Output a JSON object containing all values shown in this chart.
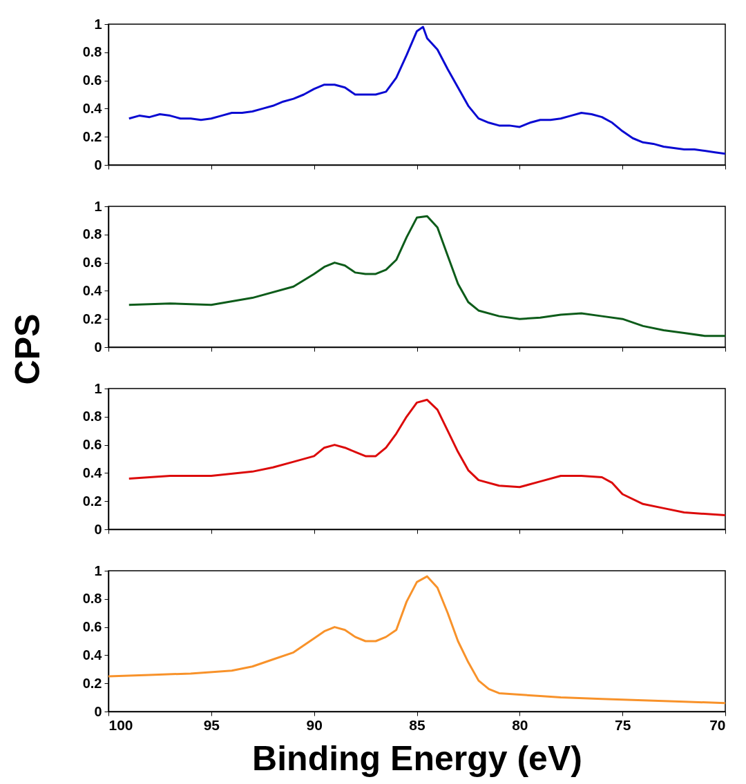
{
  "chart_data": [
    {
      "type": "line",
      "xlim": [
        100,
        70
      ],
      "ylim": [
        0,
        1
      ],
      "xticks": [
        100,
        95,
        90,
        85,
        80,
        75,
        70
      ],
      "yticks": [
        0,
        0.2,
        0.4,
        0.6,
        0.8,
        1
      ],
      "tick_labels": "y",
      "grid": false,
      "series": [
        {
          "color": "#0a0ad2",
          "x": [
            99,
            98.5,
            98,
            97.5,
            97,
            96.5,
            96,
            95.5,
            95,
            94.5,
            94,
            93.5,
            93,
            92.5,
            92,
            91.5,
            91,
            90.5,
            90,
            89.5,
            89,
            88.5,
            88,
            87.5,
            87,
            86.5,
            86,
            85.5,
            85,
            84.7,
            84.5,
            84,
            83.5,
            83,
            82.5,
            82,
            81.5,
            81,
            80.5,
            80,
            79.5,
            79,
            78.5,
            78,
            77.5,
            77,
            76.5,
            76,
            75.5,
            75,
            74.5,
            74,
            73.5,
            73,
            72.5,
            72,
            71.5,
            71,
            70.5,
            70
          ],
          "values": [
            0.33,
            0.35,
            0.34,
            0.36,
            0.35,
            0.33,
            0.33,
            0.32,
            0.33,
            0.35,
            0.37,
            0.37,
            0.38,
            0.4,
            0.42,
            0.45,
            0.47,
            0.5,
            0.54,
            0.57,
            0.57,
            0.55,
            0.5,
            0.5,
            0.5,
            0.52,
            0.62,
            0.78,
            0.95,
            0.98,
            0.9,
            0.82,
            0.68,
            0.55,
            0.42,
            0.33,
            0.3,
            0.28,
            0.28,
            0.27,
            0.3,
            0.32,
            0.32,
            0.33,
            0.35,
            0.37,
            0.36,
            0.34,
            0.3,
            0.24,
            0.19,
            0.16,
            0.15,
            0.13,
            0.12,
            0.11,
            0.11,
            0.1,
            0.09,
            0.08
          ]
        }
      ]
    },
    {
      "type": "line",
      "xlim": [
        100,
        70
      ],
      "ylim": [
        0,
        1
      ],
      "xticks": [
        100,
        95,
        90,
        85,
        80,
        75,
        70
      ],
      "yticks": [
        0,
        0.2,
        0.4,
        0.6,
        0.8,
        1
      ],
      "tick_labels": "y",
      "grid": false,
      "ylabel": "CPS",
      "series": [
        {
          "color": "#0d5c1a",
          "x": [
            99,
            97,
            95,
            93,
            91,
            90,
            89.5,
            89,
            88.5,
            88,
            87.5,
            87,
            86.5,
            86,
            85.5,
            85,
            84.5,
            84,
            83.5,
            83,
            82.5,
            82,
            81,
            80,
            79,
            78,
            77,
            76,
            75,
            74,
            73,
            72,
            71,
            70
          ],
          "values": [
            0.3,
            0.31,
            0.3,
            0.35,
            0.43,
            0.52,
            0.57,
            0.6,
            0.58,
            0.53,
            0.52,
            0.52,
            0.55,
            0.62,
            0.78,
            0.92,
            0.93,
            0.85,
            0.65,
            0.45,
            0.32,
            0.26,
            0.22,
            0.2,
            0.21,
            0.23,
            0.24,
            0.22,
            0.2,
            0.15,
            0.12,
            0.1,
            0.08,
            0.08
          ]
        }
      ]
    },
    {
      "type": "line",
      "xlim": [
        100,
        70
      ],
      "ylim": [
        0,
        1
      ],
      "xticks": [
        100,
        95,
        90,
        85,
        80,
        75,
        70
      ],
      "yticks": [
        0,
        0.2,
        0.4,
        0.6,
        0.8,
        1
      ],
      "tick_labels": "y",
      "grid": false,
      "series": [
        {
          "color": "#dc0a0a",
          "x": [
            99,
            97,
            95,
            93,
            92,
            91,
            90,
            89.5,
            89,
            88.5,
            88,
            87.5,
            87,
            86.5,
            86,
            85.5,
            85,
            84.5,
            84,
            83.5,
            83,
            82.5,
            82,
            81,
            80,
            79,
            78,
            77,
            76,
            75.5,
            75,
            74,
            73,
            72,
            71,
            70
          ],
          "values": [
            0.36,
            0.38,
            0.38,
            0.41,
            0.44,
            0.48,
            0.52,
            0.58,
            0.6,
            0.58,
            0.55,
            0.52,
            0.52,
            0.58,
            0.68,
            0.8,
            0.9,
            0.92,
            0.85,
            0.7,
            0.55,
            0.42,
            0.35,
            0.31,
            0.3,
            0.34,
            0.38,
            0.38,
            0.37,
            0.33,
            0.25,
            0.18,
            0.15,
            0.12,
            0.11,
            0.1
          ]
        }
      ]
    },
    {
      "type": "line",
      "xlim": [
        100,
        70
      ],
      "ylim": [
        0,
        1
      ],
      "xticks": [
        100,
        95,
        90,
        85,
        80,
        75,
        70
      ],
      "yticks": [
        0,
        0.2,
        0.4,
        0.6,
        0.8,
        1
      ],
      "grid": false,
      "xlabel": "Binding Energy (eV)",
      "series": [
        {
          "color": "#f8922a",
          "x": [
            100,
            98,
            96,
            94,
            93,
            92,
            91,
            90,
            89.5,
            89,
            88.5,
            88,
            87.5,
            87,
            86.5,
            86,
            85.5,
            85,
            84.5,
            84,
            83.5,
            83,
            82.5,
            82,
            81.5,
            81,
            80,
            79,
            78,
            76,
            74,
            72,
            70
          ],
          "values": [
            0.25,
            0.26,
            0.27,
            0.29,
            0.32,
            0.37,
            0.42,
            0.52,
            0.57,
            0.6,
            0.58,
            0.53,
            0.5,
            0.5,
            0.53,
            0.58,
            0.78,
            0.92,
            0.96,
            0.88,
            0.7,
            0.5,
            0.35,
            0.22,
            0.16,
            0.13,
            0.12,
            0.11,
            0.1,
            0.09,
            0.08,
            0.07,
            0.06
          ]
        }
      ]
    }
  ]
}
